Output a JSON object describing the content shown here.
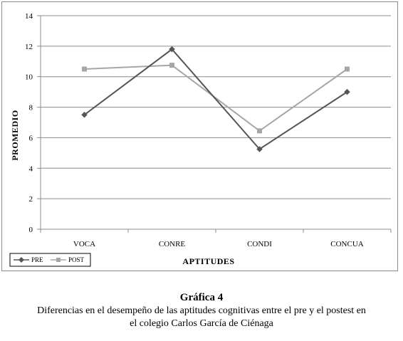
{
  "chart_data": {
    "type": "line",
    "title": "",
    "xlabel": "APTITUDES",
    "ylabel": "PROMEDIO",
    "categories": [
      "VOCA",
      "CONRE",
      "CONDI",
      "CONCUA"
    ],
    "ylim": [
      0,
      14
    ],
    "yticks": [
      "0",
      "2",
      "4",
      "6",
      "8",
      "10",
      "12",
      "14"
    ],
    "grid": true,
    "legend_position": "bottom-left",
    "series": [
      {
        "name": "PRE",
        "values": [
          7.5,
          11.8,
          5.25,
          9.0
        ],
        "color": "#555555",
        "marker": "diamond"
      },
      {
        "name": "POST",
        "values": [
          10.5,
          10.75,
          6.45,
          10.5
        ],
        "color": "#a6a6a6",
        "marker": "square"
      }
    ]
  },
  "caption": {
    "title": "Gráfica 4",
    "text": "Diferencias en el desempeño de las aptitudes cognitivas entre el pre y el postest en el colegio Carlos García de Ciénaga"
  }
}
